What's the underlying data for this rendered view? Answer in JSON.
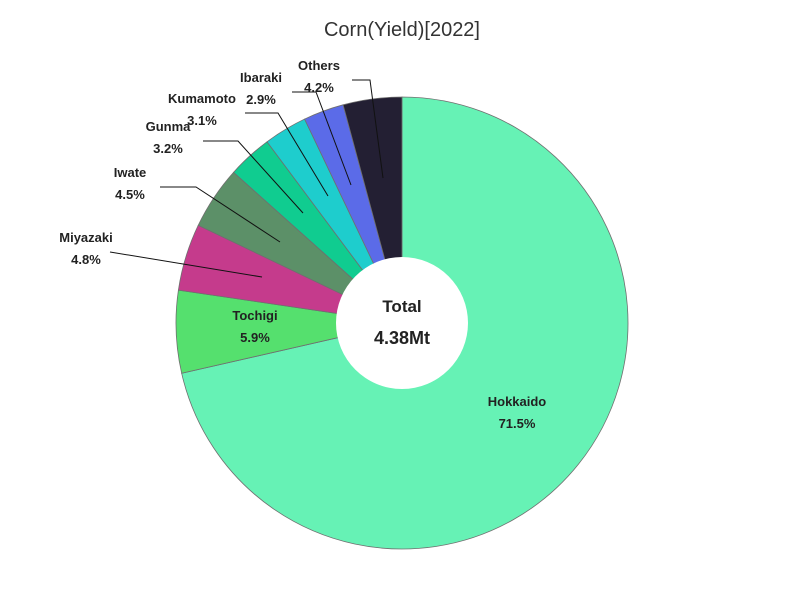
{
  "chart_data": {
    "type": "pie",
    "title": "Corn(Yield)[2022]",
    "center_label": "Total",
    "center_value": "4.38Mt",
    "slices": [
      {
        "name": "Hokkaido",
        "value": 71.5,
        "label": "71.5%",
        "color": "#66f2b5"
      },
      {
        "name": "Tochigi",
        "value": 5.9,
        "label": "5.9%",
        "color": "#55e06e"
      },
      {
        "name": "Miyazaki",
        "value": 4.8,
        "label": "4.8%",
        "color": "#c53b8c"
      },
      {
        "name": "Iwate",
        "value": 4.5,
        "label": "4.5%",
        "color": "#5c9068"
      },
      {
        "name": "Gunma",
        "value": 3.2,
        "label": "3.2%",
        "color": "#10cc90"
      },
      {
        "name": "Kumamoto",
        "value": 3.1,
        "label": "3.1%",
        "color": "#1ecdcd"
      },
      {
        "name": "Ibaraki",
        "value": 2.9,
        "label": "2.9%",
        "color": "#5b6be8"
      },
      {
        "name": "Others",
        "value": 4.2,
        "label": "4.2%",
        "color": "#231f33"
      }
    ]
  }
}
